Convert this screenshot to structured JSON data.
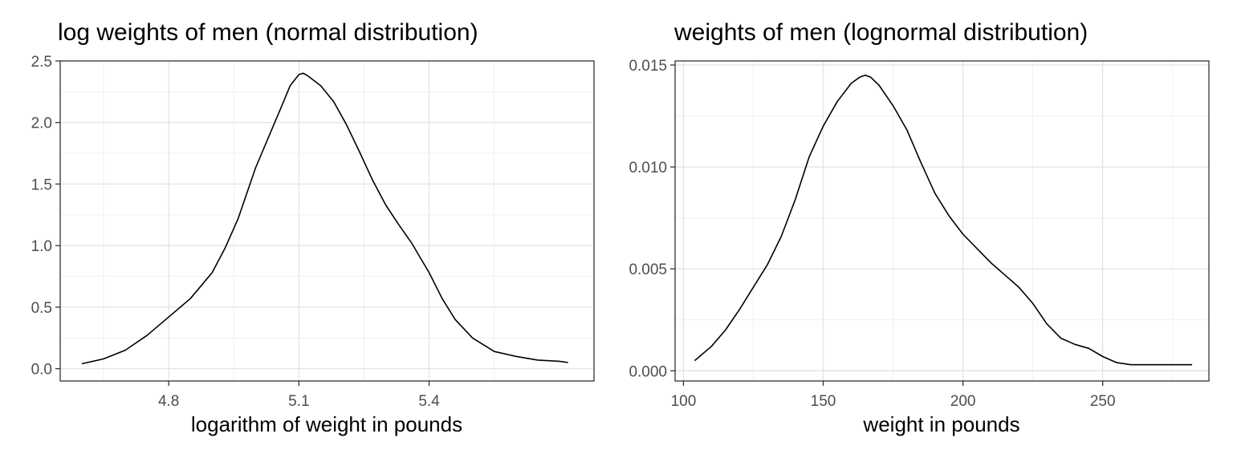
{
  "chart_data": [
    {
      "type": "line",
      "title": "log weights of men (normal distribution)",
      "xlabel": "logarithm of weight in pounds",
      "ylabel": "",
      "xlim": [
        4.55,
        5.78
      ],
      "ylim": [
        -0.1,
        2.5
      ],
      "x_ticks": [
        4.8,
        5.1,
        5.4
      ],
      "x_tick_labels": [
        "4.8",
        "5.1",
        "5.4"
      ],
      "y_ticks": [
        0.0,
        0.5,
        1.0,
        1.5,
        2.0,
        2.5
      ],
      "y_tick_labels": [
        "0.0",
        "0.5",
        "1.0",
        "1.5",
        "2.0",
        "2.5"
      ],
      "grid": true,
      "line_color": "#000000",
      "series": [
        {
          "x": [
            4.6,
            4.65,
            4.7,
            4.75,
            4.8,
            4.85,
            4.9,
            4.93,
            4.96,
            5.0,
            5.03,
            5.06,
            5.08,
            5.1,
            5.11,
            5.12,
            5.15,
            5.18,
            5.21,
            5.24,
            5.27,
            5.3,
            5.33,
            5.36,
            5.38,
            5.4,
            5.43,
            5.46,
            5.5,
            5.55,
            5.6,
            5.65,
            5.7,
            5.72
          ],
          "y": [
            0.04,
            0.08,
            0.15,
            0.27,
            0.42,
            0.57,
            0.78,
            0.98,
            1.22,
            1.63,
            1.88,
            2.13,
            2.3,
            2.39,
            2.4,
            2.38,
            2.3,
            2.17,
            1.98,
            1.76,
            1.53,
            1.33,
            1.17,
            1.02,
            0.9,
            0.78,
            0.57,
            0.4,
            0.25,
            0.14,
            0.1,
            0.07,
            0.06,
            0.05
          ]
        }
      ]
    },
    {
      "type": "line",
      "title": "weights of men (lognormal distribution)",
      "xlabel": "weight in pounds",
      "ylabel": "",
      "xlim": [
        97,
        288
      ],
      "ylim": [
        -0.0005,
        0.0152
      ],
      "x_ticks": [
        100,
        150,
        200,
        250
      ],
      "x_tick_labels": [
        "100",
        "150",
        "200",
        "250"
      ],
      "y_ticks": [
        0.0,
        0.005,
        0.01,
        0.015
      ],
      "y_tick_labels": [
        "0.000",
        "0.005",
        "0.010",
        "0.015"
      ],
      "grid": true,
      "line_color": "#000000",
      "series": [
        {
          "x": [
            104,
            110,
            115,
            120,
            125,
            130,
            135,
            140,
            145,
            150,
            155,
            160,
            163,
            165,
            167,
            170,
            175,
            180,
            185,
            190,
            195,
            200,
            205,
            210,
            215,
            220,
            225,
            230,
            235,
            240,
            245,
            250,
            255,
            260,
            265,
            270,
            275,
            280,
            282
          ],
          "y": [
            0.0005,
            0.0012,
            0.002,
            0.003,
            0.0041,
            0.0052,
            0.0066,
            0.0084,
            0.0105,
            0.012,
            0.0132,
            0.0141,
            0.0144,
            0.0145,
            0.0144,
            0.014,
            0.013,
            0.0118,
            0.0102,
            0.0087,
            0.0076,
            0.0067,
            0.006,
            0.0053,
            0.0047,
            0.0041,
            0.0033,
            0.0023,
            0.0016,
            0.0013,
            0.0011,
            0.0007,
            0.0004,
            0.0003,
            0.0003,
            0.0003,
            0.0003,
            0.0003,
            0.0003
          ]
        }
      ]
    }
  ]
}
